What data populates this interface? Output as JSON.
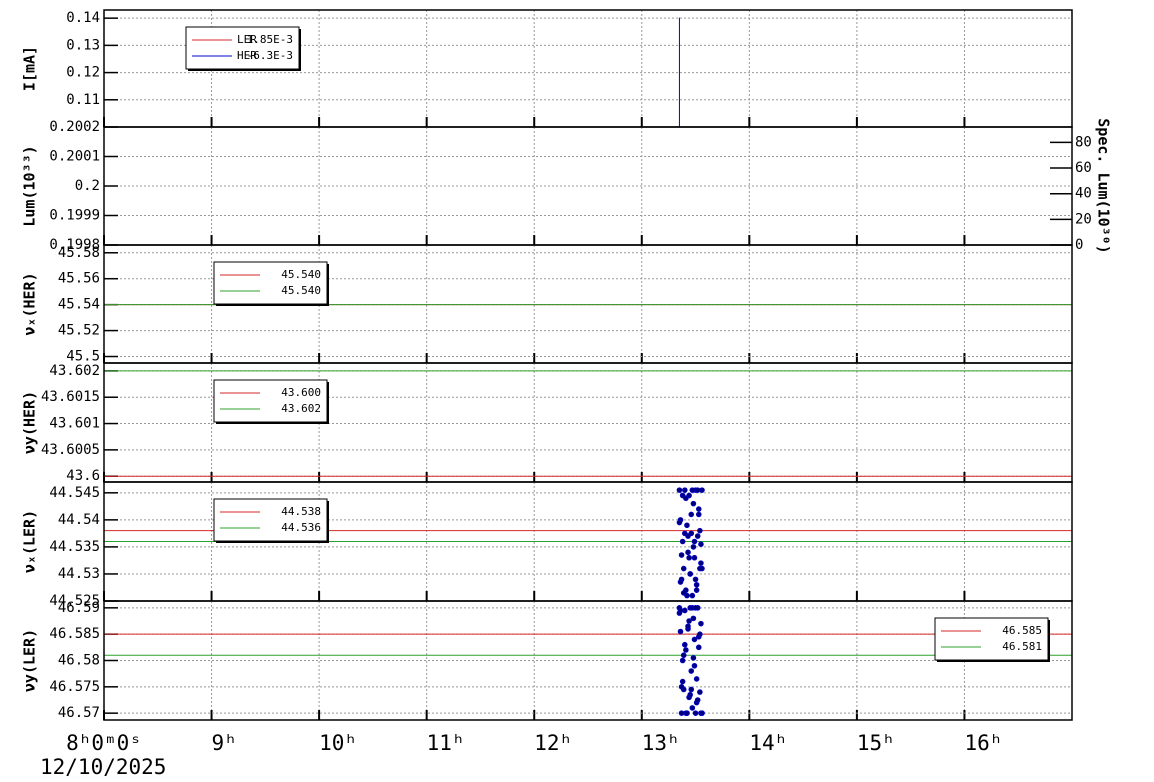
{
  "chart_data": [
    {
      "type": "line",
      "ylabel": "I[mA]",
      "ylim": [
        0.1,
        0.143
      ],
      "yticks": [
        0.11,
        0.12,
        0.13,
        0.14
      ],
      "grid": true,
      "legend": "upper left",
      "series": [
        {
          "name": "LER",
          "label": "1.85E-3",
          "color": "#d62728",
          "x": [],
          "values": []
        },
        {
          "name": "HER",
          "label": "-6.3E-3",
          "color": "#0000cc",
          "x": [
            13.35,
            13.35
          ],
          "values": [
            0.1,
            0.1402
          ]
        }
      ]
    },
    {
      "type": "line",
      "ylabel": "Lum(10³³)",
      "ylim": [
        0.1998,
        0.2002
      ],
      "yticks": [
        0.1998,
        0.1999,
        0.2,
        0.2001,
        0.2002
      ],
      "grid": true,
      "y2label": "Spec. Lum(10³⁰)",
      "y2lim": [
        0,
        92
      ],
      "y2ticks": [
        0,
        20,
        40,
        60,
        80
      ],
      "series": []
    },
    {
      "type": "line",
      "ylabel": "νₓ(HER)",
      "ylim": [
        45.495,
        45.586
      ],
      "yticks": [
        45.5,
        45.52,
        45.54,
        45.56,
        45.58
      ],
      "grid": true,
      "legend": "upper left",
      "hlines": [
        {
          "label": "45.540",
          "color": "#d62728",
          "value": 45.54
        },
        {
          "label": "45.540",
          "color": "#2ca02c",
          "value": 45.54
        }
      ]
    },
    {
      "type": "line",
      "ylabel": "νy(HER)",
      "ylim": [
        43.59989,
        43.60215
      ],
      "yticks": [
        43.6,
        43.6005,
        43.601,
        43.6015,
        43.602
      ],
      "grid": true,
      "legend": "upper left",
      "hlines": [
        {
          "label": "43.600",
          "color": "#d62728",
          "value": 43.6
        },
        {
          "label": "43.602",
          "color": "#2ca02c",
          "value": 43.602
        }
      ]
    },
    {
      "type": "scatter",
      "ylabel": "νₓ(LER)",
      "ylim": [
        44.525,
        44.547
      ],
      "yticks": [
        44.525,
        44.53,
        44.535,
        44.54,
        44.545
      ],
      "grid": true,
      "legend": "upper left",
      "hlines": [
        {
          "label": "44.538",
          "color": "#d62728",
          "value": 44.538
        },
        {
          "label": "44.536",
          "color": "#2ca02c",
          "value": 44.536
        }
      ],
      "series": [
        {
          "color": "#00007f",
          "x": [
            13.35,
            13.36,
            13.37,
            13.38,
            13.39,
            13.4,
            13.41,
            13.42,
            13.43,
            13.44,
            13.45,
            13.46,
            13.47,
            13.48,
            13.49,
            13.5,
            13.51,
            13.52,
            13.53,
            13.54,
            13.55,
            13.56,
            13.35,
            13.37,
            13.39,
            13.41,
            13.43,
            13.45,
            13.47,
            13.49,
            13.51,
            13.53,
            13.55,
            13.36,
            13.38,
            13.4,
            13.42,
            13.44,
            13.46,
            13.48,
            13.5,
            13.52,
            13.54,
            13.56
          ],
          "values": [
            44.5455,
            44.54,
            44.529,
            44.536,
            44.531,
            44.5455,
            44.527,
            44.539,
            44.534,
            44.5445,
            44.53,
            44.5375,
            44.526,
            44.543,
            44.533,
            44.5455,
            44.528,
            44.537,
            44.541,
            44.531,
            44.5355,
            44.5455,
            44.5395,
            44.5335,
            44.5265,
            44.544,
            44.537,
            44.53,
            44.5455,
            44.536,
            44.527,
            44.542,
            44.532,
            44.5285,
            44.5445,
            44.5375,
            44.526,
            44.533,
            44.541,
            44.535,
            44.529,
            44.5455,
            44.538,
            44.531
          ]
        }
      ]
    },
    {
      "type": "scatter",
      "ylabel": "νy(LER)",
      "ylim": [
        46.5687,
        46.5913
      ],
      "yticks": [
        46.57,
        46.575,
        46.58,
        46.585,
        46.59
      ],
      "grid": true,
      "legend": "upper right",
      "hlines": [
        {
          "label": "46.585",
          "color": "#d62728",
          "value": 46.585
        },
        {
          "label": "46.581",
          "color": "#2ca02c",
          "value": 46.581
        }
      ],
      "series": [
        {
          "color": "#00007f",
          "x": [
            13.35,
            13.36,
            13.37,
            13.38,
            13.39,
            13.4,
            13.41,
            13.42,
            13.43,
            13.44,
            13.45,
            13.46,
            13.47,
            13.48,
            13.49,
            13.5,
            13.51,
            13.52,
            13.53,
            13.54,
            13.55,
            13.56,
            13.35,
            13.37,
            13.39,
            13.41,
            13.43,
            13.45,
            13.47,
            13.49,
            13.51,
            13.53,
            13.55,
            13.36,
            13.38,
            13.4,
            13.42,
            13.44,
            13.46,
            13.48,
            13.5,
            13.52,
            13.54,
            13.56
          ],
          "values": [
            46.59,
            46.5855,
            46.57,
            46.58,
            46.5745,
            46.5895,
            46.582,
            46.57,
            46.586,
            46.573,
            46.59,
            46.578,
            46.571,
            46.588,
            46.584,
            46.57,
            46.5765,
            46.59,
            46.5825,
            46.574,
            46.587,
            46.57,
            46.589,
            46.575,
            46.581,
            46.57,
            46.5865,
            46.5735,
            46.59,
            46.579,
            46.572,
            46.5845,
            46.57,
            46.5895,
            46.576,
            46.583,
            46.57,
            46.5875,
            46.5745,
            46.5805,
            46.59,
            46.5725,
            46.585,
            46.57
          ]
        }
      ],
      "xlim": [
        8,
        17
      ],
      "date": "12/10/2025",
      "xticks": [
        {
          "value": 8,
          "label": "8ʰ0ᵐ0ˢ"
        },
        {
          "value": 9,
          "label": "9ʰ"
        },
        {
          "value": 10,
          "label": "10ʰ"
        },
        {
          "value": 11,
          "label": "11ʰ"
        },
        {
          "value": 12,
          "label": "12ʰ"
        },
        {
          "value": 13,
          "label": "13ʰ"
        },
        {
          "value": 14,
          "label": "14ʰ"
        },
        {
          "value": 15,
          "label": "15ʰ"
        },
        {
          "value": 16,
          "label": "16ʰ"
        }
      ]
    }
  ]
}
